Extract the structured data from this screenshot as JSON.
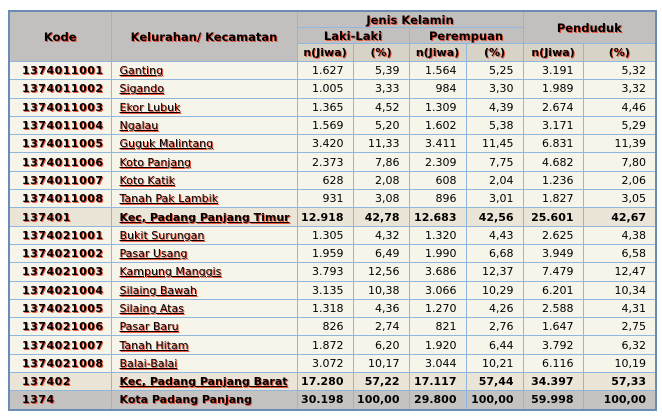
{
  "table": {
    "header": {
      "kode": "Kode",
      "kelurahan": "Kelurahan/ Kecamatan",
      "jenis_kelamin": "Jenis Kelamin",
      "laki_laki": "Laki-Laki",
      "perempuan": "Perempuan",
      "penduduk": "Penduduk",
      "n_jiwa": "n(Jiwa)",
      "percent": "(%)"
    },
    "rows": [
      {
        "type": "data",
        "kode": "1374011001",
        "name": "Ganting",
        "values": [
          "1.627",
          "5,39",
          "1.564",
          "5,25",
          "3.191",
          "5,32"
        ]
      },
      {
        "type": "data",
        "kode": "1374011002",
        "name": "Sigando",
        "values": [
          "1.005",
          "3,33",
          "984",
          "3,30",
          "1.989",
          "3,32"
        ]
      },
      {
        "type": "data",
        "kode": "1374011003",
        "name": "Ekor Lubuk",
        "values": [
          "1.365",
          "4,52",
          "1.309",
          "4,39",
          "2.674",
          "4,46"
        ]
      },
      {
        "type": "data",
        "kode": "1374011004",
        "name": "Ngalau",
        "values": [
          "1.569",
          "5,20",
          "1.602",
          "5,38",
          "3.171",
          "5,29"
        ]
      },
      {
        "type": "data",
        "kode": "1374011005",
        "name": "Guguk Malintang",
        "values": [
          "3.420",
          "11,33",
          "3.411",
          "11,45",
          "6.831",
          "11,39"
        ]
      },
      {
        "type": "data",
        "kode": "1374011006",
        "name": "Koto Panjang",
        "values": [
          "2.373",
          "7,86",
          "2.309",
          "7,75",
          "4.682",
          "7,80"
        ]
      },
      {
        "type": "data",
        "kode": "1374011007",
        "name": "Koto Katik",
        "values": [
          "628",
          "2,08",
          "608",
          "2,04",
          "1.236",
          "2,06"
        ]
      },
      {
        "type": "data",
        "kode": "1374011008",
        "name": "Tanah Pak Lambik",
        "values": [
          "931",
          "3,08",
          "896",
          "3,01",
          "1.827",
          "3,05"
        ]
      },
      {
        "type": "subtotal",
        "kode": "137401",
        "name": "Kec, Padang Panjang Timur",
        "values": [
          "12.918",
          "42,78",
          "12.683",
          "42,56",
          "25.601",
          "42,67"
        ]
      },
      {
        "type": "data",
        "kode": "1374021001",
        "name": "Bukit Surungan",
        "values": [
          "1.305",
          "4,32",
          "1.320",
          "4,43",
          "2.625",
          "4,38"
        ]
      },
      {
        "type": "data",
        "kode": "1374021002",
        "name": "Pasar Usang",
        "values": [
          "1.959",
          "6,49",
          "1.990",
          "6,68",
          "3.949",
          "6,58"
        ]
      },
      {
        "type": "data",
        "kode": "1374021003",
        "name": "Kampung Manggis",
        "values": [
          "3.793",
          "12,56",
          "3.686",
          "12,37",
          "7.479",
          "12,47"
        ]
      },
      {
        "type": "data",
        "kode": "1374021004",
        "name": "Silaing Bawah",
        "values": [
          "3.135",
          "10,38",
          "3.066",
          "10,29",
          "6.201",
          "10,34"
        ]
      },
      {
        "type": "data",
        "kode": "1374021005",
        "name": "Silaing Atas",
        "values": [
          "1.318",
          "4,36",
          "1.270",
          "4,26",
          "2.588",
          "4,31"
        ]
      },
      {
        "type": "data",
        "kode": "1374021006",
        "name": "Pasar Baru",
        "values": [
          "826",
          "2,74",
          "821",
          "2,76",
          "1.647",
          "2,75"
        ]
      },
      {
        "type": "data",
        "kode": "1374021007",
        "name": "Tanah Hitam",
        "values": [
          "1.872",
          "6,20",
          "1.920",
          "6,44",
          "3.792",
          "6,32"
        ]
      },
      {
        "type": "data",
        "kode": "1374021008",
        "name": "Balai-Balai",
        "values": [
          "3.072",
          "10,17",
          "3.044",
          "10,21",
          "6.116",
          "10,19"
        ]
      },
      {
        "type": "subtotal",
        "kode": "137402",
        "name": "Kec, Padang Panjang Barat",
        "values": [
          "17.280",
          "57,22",
          "17.117",
          "57,44",
          "34.397",
          "57,33"
        ]
      },
      {
        "type": "total",
        "kode": "1374",
        "name": "Kota Padang Panjang",
        "values": [
          "30.198",
          "100,00",
          "29.800",
          "100,00",
          "59.998",
          "100,00"
        ]
      }
    ]
  },
  "colors": {
    "header_bg": "#c1c0bf",
    "subheader_bg": "#d7d3c6",
    "row_bg": "#f7f4ea",
    "subtotal_bg": "#eae5d6",
    "total_bg": "#c4c3c2",
    "grid_border": "#8fb6dc",
    "outer_border": "#6b8cb5",
    "text_shadow": "#eb3c23"
  }
}
